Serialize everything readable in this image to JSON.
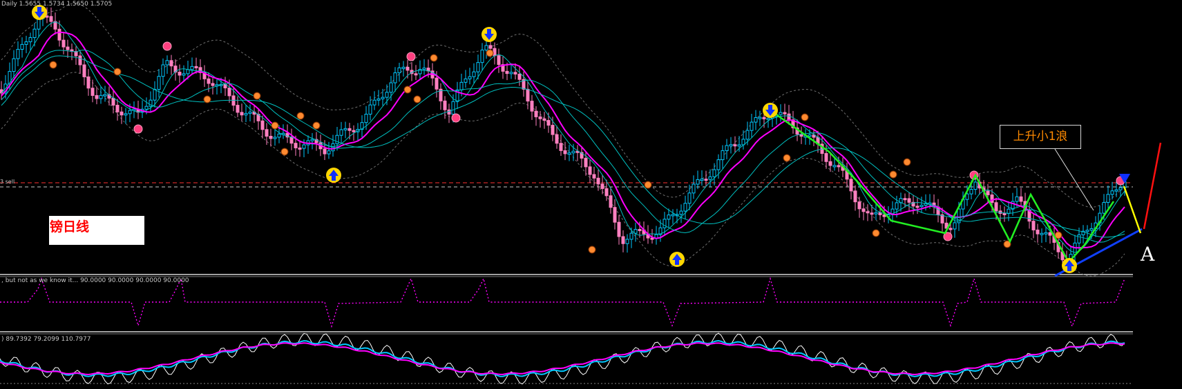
{
  "header": {
    "main_info": "Daily  1.5655 1.5734 1.5650 1.5705",
    "indicator1_info": ", but not as we know it...  90.0000 90.0000 90.0000 90.0000",
    "indicator2_info": ") 89.7392 79.2099 110.7977"
  },
  "levels": {
    "sell_label": "3 sell"
  },
  "annotations": {
    "label_box_text": "镑日线",
    "wave_label": "上升小1浪",
    "point_label": "A"
  },
  "colors": {
    "background": "#000000",
    "bull_candle": "#00c8ff",
    "bear_candle": "#ff80c0",
    "ma_fast": "#ff00ff",
    "ma_slow": "#00c0c0",
    "bands": "#707070",
    "zigzag": "#22ee22",
    "trend_blue": "#1040ff",
    "trend_red": "#ff1010",
    "trend_yellow": "#ffff00",
    "signal_arrow": "#ffd700",
    "fractal_orange": "#ff8a30",
    "fractal_pink": "#ff4080",
    "sell_level_line": "#ff3030",
    "divider": "#ffffff"
  },
  "icons": {
    "up_arrow": "up-arrow-signal-icon",
    "down_arrow": "down-arrow-signal-icon",
    "fractal": "fractal-dot-icon"
  }
}
